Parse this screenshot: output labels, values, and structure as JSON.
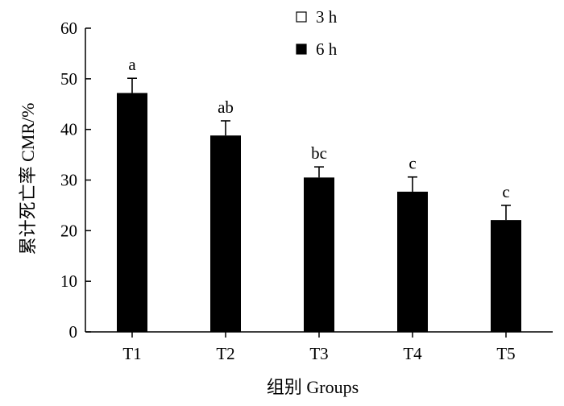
{
  "chart_data": {
    "type": "bar",
    "title": "",
    "xlabel": "组别  Groups",
    "ylabel": "累计死亡率  CMR/%",
    "ylim": [
      0,
      60
    ],
    "yticks": [
      0,
      10,
      20,
      30,
      40,
      50,
      60
    ],
    "categories": [
      "T1",
      "T2",
      "T3",
      "T4",
      "T5"
    ],
    "series": [
      {
        "name": "3 h",
        "values": [
          0,
          0,
          0,
          0,
          0
        ],
        "errors": [
          0,
          0,
          0,
          0,
          0
        ],
        "color": "#ffffff"
      },
      {
        "name": "6 h",
        "values": [
          47.2,
          38.8,
          30.5,
          27.7,
          22.1
        ],
        "errors": [
          2.9,
          2.9,
          2.1,
          2.9,
          2.9
        ],
        "color": "#000000"
      }
    ],
    "annotations": [
      "a",
      "ab",
      "bc",
      "c",
      "c"
    ],
    "legend": {
      "placement": "top-right"
    },
    "grid": false
  }
}
